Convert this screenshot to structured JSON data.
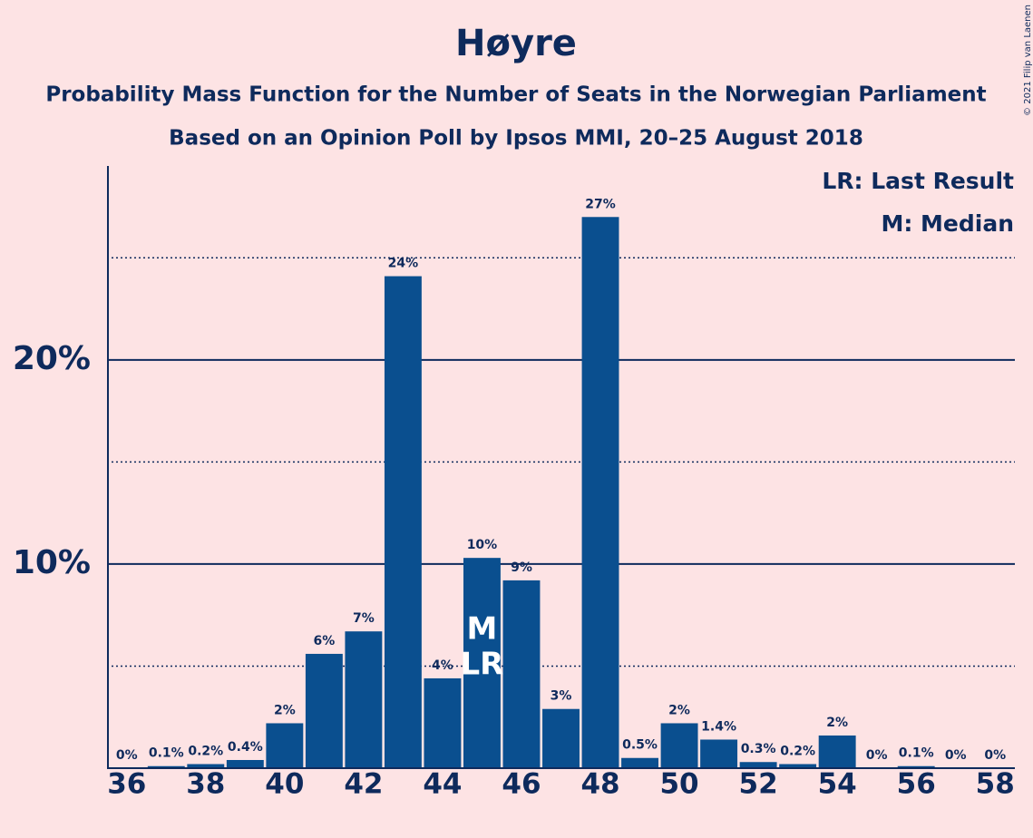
{
  "chart_data": {
    "type": "bar",
    "title": "Høyre",
    "subtitles": [
      "Probability Mass Function for the Number of Seats in the Norwegian Parliament",
      "Based on an Opinion Poll by Ipsos MMI, 20–25 August 2018"
    ],
    "x": [
      36,
      37,
      38,
      39,
      40,
      41,
      42,
      43,
      44,
      45,
      46,
      47,
      48,
      49,
      50,
      51,
      52,
      53,
      54,
      55,
      56,
      57,
      58
    ],
    "values": [
      0,
      0.1,
      0.2,
      0.4,
      2.2,
      5.6,
      6.7,
      24.1,
      4.4,
      10.3,
      9.2,
      2.9,
      27.0,
      0.5,
      2.2,
      1.4,
      0.3,
      0.2,
      1.6,
      0,
      0.1,
      0,
      0
    ],
    "value_labels": [
      "0%",
      "0.1%",
      "0.2%",
      "0.4%",
      "2%",
      "6%",
      "7%",
      "24%",
      "4%",
      "10%",
      "9%",
      "3%",
      "27%",
      "0.5%",
      "2%",
      "1.4%",
      "0.3%",
      "0.2%",
      "2%",
      "0%",
      "0.1%",
      "0%",
      "0%"
    ],
    "color": "#0a4f8f",
    "xlim": [
      35.5,
      58.5
    ],
    "xticks": [
      36,
      38,
      40,
      42,
      44,
      46,
      48,
      50,
      52,
      54,
      56,
      58
    ],
    "ylim": [
      0,
      29.5
    ],
    "yticks": [
      {
        "value": 10,
        "label": "10%"
      },
      {
        "value": 20,
        "label": "20%"
      }
    ],
    "minor_yticks": [
      5,
      15,
      25
    ],
    "grid": true,
    "legend": [
      "LR: Last Result",
      "M: Median"
    ],
    "legend_position": "upper right",
    "annotations": [
      {
        "x": 45,
        "text": "M"
      },
      {
        "x": 45,
        "text": "LR"
      }
    ],
    "copyright": "© 2021 Filip van Laenen"
  }
}
